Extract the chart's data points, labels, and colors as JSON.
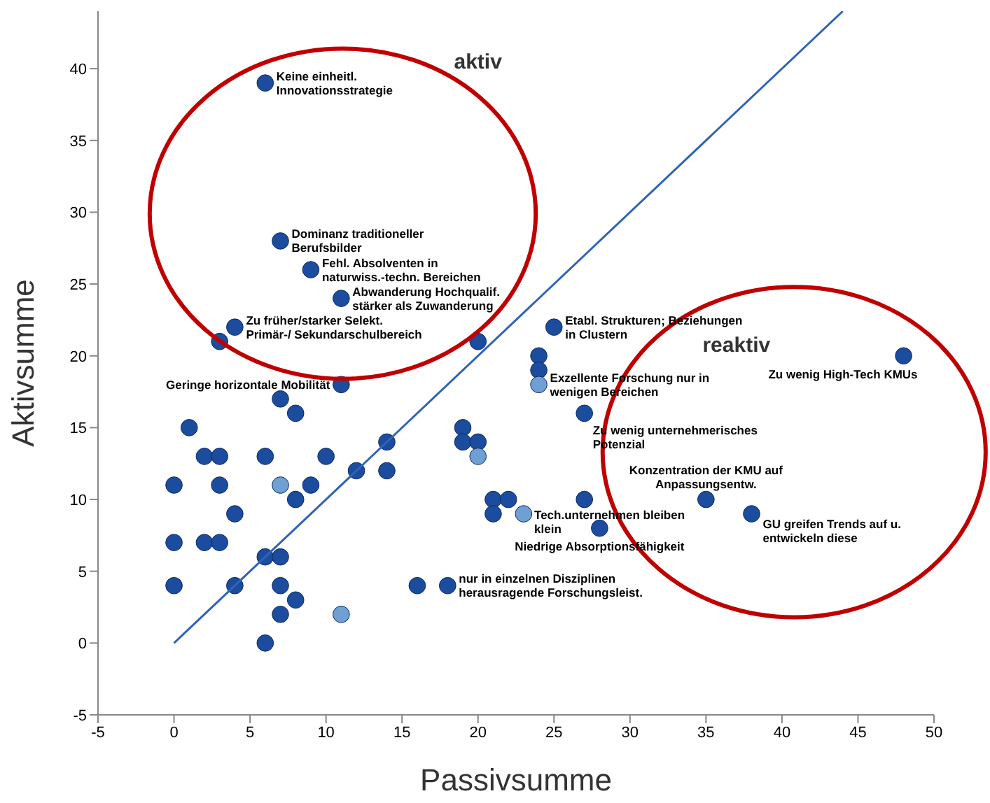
{
  "chart_data": {
    "type": "scatter",
    "xlabel": "Passivsumme",
    "ylabel": "Aktivsumme",
    "xlim": [
      -5,
      50
    ],
    "ylim": [
      -5,
      44
    ],
    "xticks": [
      -5,
      0,
      5,
      10,
      15,
      20,
      25,
      30,
      35,
      40,
      45,
      50
    ],
    "yticks": [
      -5,
      0,
      5,
      10,
      15,
      20,
      25,
      30,
      35,
      40
    ],
    "marker": "circle",
    "grid": false,
    "series": [
      {
        "color": "#1c4c9e",
        "x": [
          6,
          7,
          9,
          11,
          4,
          3,
          20,
          25,
          11,
          24,
          24,
          48,
          7,
          8,
          27,
          1,
          2,
          3,
          6,
          10,
          14,
          19,
          19,
          20,
          0,
          3,
          9,
          12,
          14,
          8,
          21,
          22,
          21,
          27,
          35,
          38,
          28,
          4,
          0,
          2,
          3,
          6,
          7,
          0,
          4,
          7,
          16,
          18,
          8,
          7,
          6
        ],
        "values": [
          39,
          28,
          26,
          24,
          22,
          21,
          21,
          22,
          18,
          20,
          19,
          20,
          17,
          16,
          16,
          15,
          13,
          13,
          13,
          13,
          14,
          15,
          14,
          14,
          11,
          11,
          11,
          12,
          12,
          10,
          10,
          10,
          9,
          10,
          10,
          9,
          8,
          9,
          7,
          7,
          7,
          6,
          6,
          4,
          4,
          4,
          4,
          4,
          3,
          2,
          0
        ]
      },
      {
        "color": "#6f9fd3",
        "x": [
          24,
          7,
          20,
          23,
          11
        ],
        "values": [
          18,
          11,
          13,
          9,
          2
        ]
      },
      {
        "type": "line",
        "color": "#2f63b8",
        "line_style": "solid",
        "marker": "none",
        "x": [
          0,
          44
        ],
        "values": [
          0,
          44
        ]
      }
    ],
    "annotations": [
      {
        "text": "Keine einheitl. Innovationsstrategie",
        "x": 6,
        "y": 39
      },
      {
        "text": "Dominanz traditioneller Berufsbilder",
        "x": 7,
        "y": 28
      },
      {
        "text": "Fehl. Absolventen in naturwiss.-techn. Bereichen",
        "x": 9,
        "y": 26
      },
      {
        "text": "Abwanderung Hochqualif. stärker als Zuwanderung",
        "x": 11,
        "y": 24
      },
      {
        "text": "Zu früher/starker Selekt. Primär-/ Sekundarschulbereich",
        "x": 4,
        "y": 22
      },
      {
        "text": "Geringe horizontale Mobilität",
        "x": 11,
        "y": 18
      },
      {
        "text": "Etabl. Strukturen; Beziehungen in Clustern",
        "x": 25,
        "y": 22
      },
      {
        "text": "Exzellente Forschung nur in wenigen Bereichen",
        "x": 24,
        "y": 18
      },
      {
        "text": "Zu wenig High-Tech KMUs",
        "x": 48,
        "y": 20
      },
      {
        "text": "Zu wenig unternehmerisches Potenzial",
        "x": 27,
        "y": 16
      },
      {
        "text": "Tech.unternehmen bleiben klein",
        "x": 27,
        "y": 10
      },
      {
        "text": "Niedrige Absorptionsfähigkeit",
        "x": 28,
        "y": 8
      },
      {
        "text": "Konzentration der KMU auf Anpassungsentw.",
        "x": 35,
        "y": 10
      },
      {
        "text": "GU greifen Trends auf u. entwickeln diese",
        "x": 38,
        "y": 9
      },
      {
        "text": "nur in einzelnen Disziplinen herausragende Forschungsleist.",
        "x": 18,
        "y": 4
      },
      "aktiv",
      "reaktiv"
    ]
  }
}
